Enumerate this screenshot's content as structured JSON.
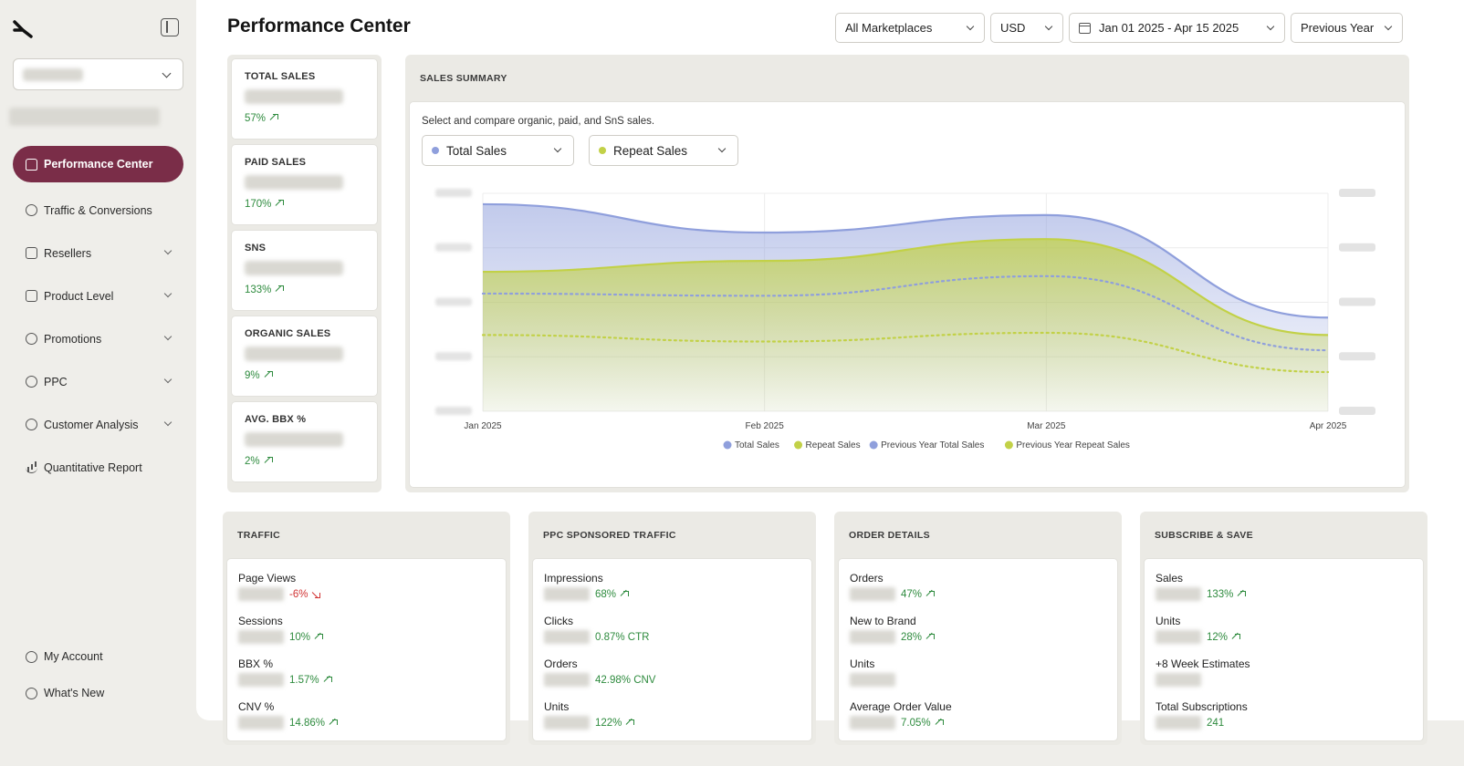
{
  "sidebar": {
    "items": [
      {
        "label": "Performance Center",
        "icon": "home-icon",
        "active": true,
        "has_chevron": false
      },
      {
        "label": "Traffic & Conversions",
        "icon": "traffic-icon",
        "has_chevron": false
      },
      {
        "label": "Resellers",
        "icon": "store-icon",
        "has_chevron": true
      },
      {
        "label": "Product Level",
        "icon": "box-icon",
        "has_chevron": true
      },
      {
        "label": "Promotions",
        "icon": "megaphone-icon",
        "has_chevron": true
      },
      {
        "label": "PPC",
        "icon": "ppc-icon",
        "has_chevron": true
      },
      {
        "label": "Customer Analysis",
        "icon": "customer-icon",
        "has_chevron": true
      },
      {
        "label": "Quantitative Report",
        "icon": "bar-chart-icon",
        "has_chevron": false
      }
    ],
    "bottom_items": [
      {
        "label": "My Account",
        "icon": "user-circle-icon"
      },
      {
        "label": "What's New",
        "icon": "help-circle-icon"
      }
    ]
  },
  "header": {
    "title": "Performance Center",
    "marketplace": "All Marketplaces",
    "currency": "USD",
    "date_range": "Jan 01 2025 - Apr 15 2025",
    "compare": "Previous Year"
  },
  "kpis": [
    {
      "label": "TOTAL SALES",
      "delta": "57%",
      "direction": "up"
    },
    {
      "label": "PAID SALES",
      "delta": "170%",
      "direction": "up"
    },
    {
      "label": "SNS",
      "delta": "133%",
      "direction": "up"
    },
    {
      "label": "ORGANIC SALES",
      "delta": "9%",
      "direction": "up"
    },
    {
      "label": "AVG. BBX %",
      "delta": "2%",
      "direction": "up"
    }
  ],
  "summary": {
    "heading": "SALES SUMMARY",
    "description": "Select and compare organic, paid, and SnS sales.",
    "select_1": "Total Sales",
    "select_2": "Repeat Sales"
  },
  "chart_data": {
    "type": "area",
    "x": [
      "Jan 2025",
      "Feb 2025",
      "Mar 2025",
      "Apr 2025"
    ],
    "y_scale": "hidden (blurred)",
    "grid": true,
    "legend_position": "bottom",
    "series": [
      {
        "name": "Total Sales",
        "style": "area",
        "color": "#8f9fdc",
        "values": [
          0.95,
          0.82,
          0.9,
          0.43
        ]
      },
      {
        "name": "Repeat Sales",
        "style": "area",
        "color": "#c2d147",
        "values": [
          0.64,
          0.69,
          0.79,
          0.35
        ]
      },
      {
        "name": "Previous Year Total Sales",
        "style": "dotted",
        "color": "#8f9fdc",
        "values": [
          0.54,
          0.53,
          0.62,
          0.28
        ]
      },
      {
        "name": "Previous Year Repeat Sales",
        "style": "dotted",
        "color": "#c2d147",
        "values": [
          0.35,
          0.32,
          0.36,
          0.18
        ]
      }
    ]
  },
  "cards": [
    {
      "heading": "TRAFFIC",
      "metrics": [
        {
          "label": "Page Views",
          "value": "-6%",
          "direction": "down"
        },
        {
          "label": "Sessions",
          "value": "10%",
          "direction": "up"
        },
        {
          "label": "BBX %",
          "value": "1.57%",
          "direction": "up"
        },
        {
          "label": "CNV %",
          "value": "14.86%",
          "direction": "up"
        }
      ]
    },
    {
      "heading": "PPC SPONSORED TRAFFIC",
      "metrics": [
        {
          "label": "Impressions",
          "value": "68%",
          "direction": "up"
        },
        {
          "label": "Clicks",
          "value": "0.87% CTR",
          "direction": "none"
        },
        {
          "label": "Orders",
          "value": "42.98% CNV",
          "direction": "none"
        },
        {
          "label": "Units",
          "value": "122%",
          "direction": "up"
        }
      ]
    },
    {
      "heading": "ORDER DETAILS",
      "metrics": [
        {
          "label": "Orders",
          "value": "47%",
          "direction": "up"
        },
        {
          "label": "New to Brand",
          "value": "28%",
          "direction": "up"
        },
        {
          "label": "Units",
          "value": "",
          "direction": "none"
        },
        {
          "label": "Average Order Value",
          "value": "7.05%",
          "direction": "up"
        }
      ]
    },
    {
      "heading": "SUBSCRIBE & SAVE",
      "metrics": [
        {
          "label": "Sales",
          "value": "133%",
          "direction": "up"
        },
        {
          "label": "Units",
          "value": "12%",
          "direction": "up"
        },
        {
          "label": "+8 Week Estimates",
          "value": "",
          "direction": "none"
        },
        {
          "label": "Total Subscriptions",
          "value": "241",
          "direction": "none"
        }
      ]
    }
  ]
}
